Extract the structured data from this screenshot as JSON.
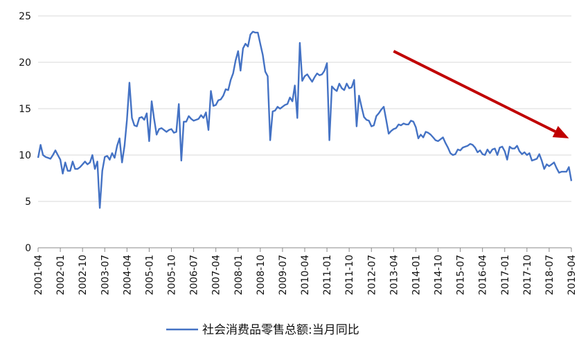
{
  "chart_data": {
    "type": "line",
    "title": "",
    "xlabel": "",
    "ylabel": "",
    "ylim": [
      0,
      25
    ],
    "yticks": [
      0,
      5,
      10,
      15,
      20,
      25
    ],
    "x_start": "2001-04",
    "x_end": "2019-04",
    "xtick_labels": [
      "2001-04",
      "2002-01",
      "2002-10",
      "2003-07",
      "2004-04",
      "2005-01",
      "2005-10",
      "2006-07",
      "2007-04",
      "2008-01",
      "2008-10",
      "2009-07",
      "2010-04",
      "2011-01",
      "2011-10",
      "2012-07",
      "2013-04",
      "2014-01",
      "2014-10",
      "2015-07",
      "2016-04",
      "2017-01",
      "2017-10",
      "2018-07",
      "2019-04"
    ],
    "grid": "horizontal",
    "legend_position": "bottom",
    "series_color": "#4472C4",
    "arrow_color": "#C00000",
    "annotation": "downward trend arrow from 2013-04 to 2019-03",
    "series": [
      {
        "name": "社会消费品零售总额:当月同比",
        "points": [
          [
            "2001-04",
            9.7
          ],
          [
            "2001-05",
            11.1
          ],
          [
            "2001-06",
            10.0
          ],
          [
            "2001-07",
            9.8
          ],
          [
            "2001-08",
            9.7
          ],
          [
            "2001-09",
            9.6
          ],
          [
            "2001-10",
            10.0
          ],
          [
            "2001-11",
            10.5
          ],
          [
            "2001-12",
            10.0
          ],
          [
            "2002-01",
            9.5
          ],
          [
            "2002-02",
            8.0
          ],
          [
            "2002-03",
            9.2
          ],
          [
            "2002-04",
            8.3
          ],
          [
            "2002-05",
            8.3
          ],
          [
            "2002-06",
            9.3
          ],
          [
            "2002-07",
            8.5
          ],
          [
            "2002-08",
            8.5
          ],
          [
            "2002-09",
            8.7
          ],
          [
            "2002-10",
            9.0
          ],
          [
            "2002-11",
            9.3
          ],
          [
            "2002-12",
            9.0
          ],
          [
            "2003-01",
            9.2
          ],
          [
            "2003-02",
            10.0
          ],
          [
            "2003-03",
            8.5
          ],
          [
            "2003-04",
            9.3
          ],
          [
            "2003-05",
            4.3
          ],
          [
            "2003-06",
            8.3
          ],
          [
            "2003-07",
            9.8
          ],
          [
            "2003-08",
            9.9
          ],
          [
            "2003-09",
            9.5
          ],
          [
            "2003-10",
            10.2
          ],
          [
            "2003-11",
            9.7
          ],
          [
            "2003-12",
            11.0
          ],
          [
            "2004-01",
            11.8
          ],
          [
            "2004-02",
            9.2
          ],
          [
            "2004-03",
            11.0
          ],
          [
            "2004-04",
            13.8
          ],
          [
            "2004-05",
            17.8
          ],
          [
            "2004-06",
            14.0
          ],
          [
            "2004-07",
            13.2
          ],
          [
            "2004-08",
            13.1
          ],
          [
            "2004-09",
            14.0
          ],
          [
            "2004-10",
            14.1
          ],
          [
            "2004-11",
            13.8
          ],
          [
            "2004-12",
            14.5
          ],
          [
            "2005-01",
            11.5
          ],
          [
            "2005-02",
            15.8
          ],
          [
            "2005-03",
            13.9
          ],
          [
            "2005-04",
            12.2
          ],
          [
            "2005-05",
            12.8
          ],
          [
            "2005-06",
            12.9
          ],
          [
            "2005-07",
            12.7
          ],
          [
            "2005-08",
            12.5
          ],
          [
            "2005-09",
            12.7
          ],
          [
            "2005-10",
            12.8
          ],
          [
            "2005-11",
            12.4
          ],
          [
            "2005-12",
            12.5
          ],
          [
            "2006-01",
            15.5
          ],
          [
            "2006-02",
            9.4
          ],
          [
            "2006-03",
            13.6
          ],
          [
            "2006-04",
            13.6
          ],
          [
            "2006-05",
            14.2
          ],
          [
            "2006-06",
            13.9
          ],
          [
            "2006-07",
            13.7
          ],
          [
            "2006-08",
            13.8
          ],
          [
            "2006-09",
            13.9
          ],
          [
            "2006-10",
            14.3
          ],
          [
            "2006-11",
            14.0
          ],
          [
            "2006-12",
            14.6
          ],
          [
            "2007-01",
            12.7
          ],
          [
            "2007-02",
            16.9
          ],
          [
            "2007-03",
            15.3
          ],
          [
            "2007-04",
            15.4
          ],
          [
            "2007-05",
            15.9
          ],
          [
            "2007-06",
            16.0
          ],
          [
            "2007-07",
            16.4
          ],
          [
            "2007-08",
            17.1
          ],
          [
            "2007-09",
            17.0
          ],
          [
            "2007-10",
            18.1
          ],
          [
            "2007-11",
            18.8
          ],
          [
            "2007-12",
            20.2
          ],
          [
            "2008-01",
            21.2
          ],
          [
            "2008-02",
            19.1
          ],
          [
            "2008-03",
            21.5
          ],
          [
            "2008-04",
            22.0
          ],
          [
            "2008-05",
            21.7
          ],
          [
            "2008-06",
            23.0
          ],
          [
            "2008-07",
            23.3
          ],
          [
            "2008-08",
            23.2
          ],
          [
            "2008-09",
            23.2
          ],
          [
            "2008-10",
            22.0
          ],
          [
            "2008-11",
            20.8
          ],
          [
            "2008-12",
            19.0
          ],
          [
            "2009-01",
            18.5
          ],
          [
            "2009-02",
            11.6
          ],
          [
            "2009-03",
            14.7
          ],
          [
            "2009-04",
            14.8
          ],
          [
            "2009-05",
            15.2
          ],
          [
            "2009-06",
            15.0
          ],
          [
            "2009-07",
            15.2
          ],
          [
            "2009-08",
            15.4
          ],
          [
            "2009-09",
            15.5
          ],
          [
            "2009-10",
            16.2
          ],
          [
            "2009-11",
            15.8
          ],
          [
            "2009-12",
            17.5
          ],
          [
            "2010-01",
            14.0
          ],
          [
            "2010-02",
            22.1
          ],
          [
            "2010-03",
            18.0
          ],
          [
            "2010-04",
            18.5
          ],
          [
            "2010-05",
            18.7
          ],
          [
            "2010-06",
            18.3
          ],
          [
            "2010-07",
            17.9
          ],
          [
            "2010-08",
            18.4
          ],
          [
            "2010-09",
            18.8
          ],
          [
            "2010-10",
            18.6
          ],
          [
            "2010-11",
            18.7
          ],
          [
            "2010-12",
            19.1
          ],
          [
            "2011-01",
            19.9
          ],
          [
            "2011-02",
            11.6
          ],
          [
            "2011-03",
            17.4
          ],
          [
            "2011-04",
            17.1
          ],
          [
            "2011-05",
            16.9
          ],
          [
            "2011-06",
            17.7
          ],
          [
            "2011-07",
            17.2
          ],
          [
            "2011-08",
            17.0
          ],
          [
            "2011-09",
            17.7
          ],
          [
            "2011-10",
            17.2
          ],
          [
            "2011-11",
            17.3
          ],
          [
            "2011-12",
            18.1
          ],
          [
            "2012-01",
            13.1
          ],
          [
            "2012-02",
            16.4
          ],
          [
            "2012-03",
            15.2
          ],
          [
            "2012-04",
            14.1
          ],
          [
            "2012-05",
            13.8
          ],
          [
            "2012-06",
            13.7
          ],
          [
            "2012-07",
            13.1
          ],
          [
            "2012-08",
            13.2
          ],
          [
            "2012-09",
            14.2
          ],
          [
            "2012-10",
            14.5
          ],
          [
            "2012-11",
            14.9
          ],
          [
            "2012-12",
            15.2
          ],
          [
            "2013-01",
            13.8
          ],
          [
            "2013-02",
            12.3
          ],
          [
            "2013-03",
            12.6
          ],
          [
            "2013-04",
            12.8
          ],
          [
            "2013-05",
            12.9
          ],
          [
            "2013-06",
            13.3
          ],
          [
            "2013-07",
            13.2
          ],
          [
            "2013-08",
            13.4
          ],
          [
            "2013-09",
            13.3
          ],
          [
            "2013-10",
            13.3
          ],
          [
            "2013-11",
            13.7
          ],
          [
            "2013-12",
            13.6
          ],
          [
            "2014-01",
            13.0
          ],
          [
            "2014-02",
            11.8
          ],
          [
            "2014-03",
            12.2
          ],
          [
            "2014-04",
            11.9
          ],
          [
            "2014-05",
            12.5
          ],
          [
            "2014-06",
            12.4
          ],
          [
            "2014-07",
            12.2
          ],
          [
            "2014-08",
            11.9
          ],
          [
            "2014-09",
            11.6
          ],
          [
            "2014-10",
            11.5
          ],
          [
            "2014-11",
            11.7
          ],
          [
            "2014-12",
            11.9
          ],
          [
            "2015-01",
            11.3
          ],
          [
            "2015-02",
            10.8
          ],
          [
            "2015-03",
            10.2
          ],
          [
            "2015-04",
            10.0
          ],
          [
            "2015-05",
            10.1
          ],
          [
            "2015-06",
            10.6
          ],
          [
            "2015-07",
            10.5
          ],
          [
            "2015-08",
            10.8
          ],
          [
            "2015-09",
            10.9
          ],
          [
            "2015-10",
            11.0
          ],
          [
            "2015-11",
            11.2
          ],
          [
            "2015-12",
            11.1
          ],
          [
            "2016-01",
            10.8
          ],
          [
            "2016-02",
            10.3
          ],
          [
            "2016-03",
            10.5
          ],
          [
            "2016-04",
            10.1
          ],
          [
            "2016-05",
            10.0
          ],
          [
            "2016-06",
            10.6
          ],
          [
            "2016-07",
            10.2
          ],
          [
            "2016-08",
            10.6
          ],
          [
            "2016-09",
            10.7
          ],
          [
            "2016-10",
            10.0
          ],
          [
            "2016-11",
            10.8
          ],
          [
            "2016-12",
            10.9
          ],
          [
            "2017-01",
            10.4
          ],
          [
            "2017-02",
            9.5
          ],
          [
            "2017-03",
            10.9
          ],
          [
            "2017-04",
            10.7
          ],
          [
            "2017-05",
            10.7
          ],
          [
            "2017-06",
            11.0
          ],
          [
            "2017-07",
            10.4
          ],
          [
            "2017-08",
            10.1
          ],
          [
            "2017-09",
            10.3
          ],
          [
            "2017-10",
            10.0
          ],
          [
            "2017-11",
            10.2
          ],
          [
            "2017-12",
            9.4
          ],
          [
            "2018-01",
            9.5
          ],
          [
            "2018-02",
            9.6
          ],
          [
            "2018-03",
            10.1
          ],
          [
            "2018-04",
            9.4
          ],
          [
            "2018-05",
            8.5
          ],
          [
            "2018-06",
            9.0
          ],
          [
            "2018-07",
            8.8
          ],
          [
            "2018-08",
            9.0
          ],
          [
            "2018-09",
            9.2
          ],
          [
            "2018-10",
            8.6
          ],
          [
            "2018-11",
            8.1
          ],
          [
            "2018-12",
            8.2
          ],
          [
            "2019-01",
            8.2
          ],
          [
            "2019-02",
            8.2
          ],
          [
            "2019-03",
            8.7
          ],
          [
            "2019-04",
            7.2
          ]
        ]
      }
    ],
    "arrow": {
      "from": [
        "2013-04",
        21.2
      ],
      "to": [
        "2019-03",
        11.8
      ]
    }
  }
}
